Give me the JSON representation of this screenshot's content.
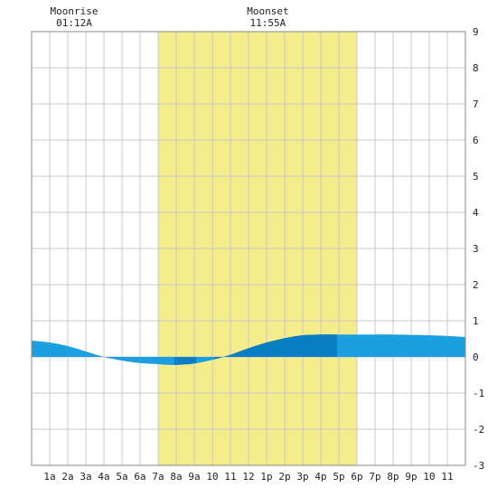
{
  "chart_data": {
    "type": "area",
    "annotations": [
      {
        "label": "Moonrise",
        "time": "01:12A",
        "hour": 1.2
      },
      {
        "label": "Moonset",
        "time": "11:55A",
        "hour": 11.92
      }
    ],
    "x_tick_labels": [
      "1a",
      "2a",
      "3a",
      "4a",
      "5a",
      "6a",
      "7a",
      "8a",
      "9a",
      "10",
      "11",
      "12",
      "1p",
      "2p",
      "3p",
      "4p",
      "5p",
      "6p",
      "7p",
      "8p",
      "9p",
      "10",
      "11"
    ],
    "y_tick_labels": [
      "9",
      "8",
      "7",
      "6",
      "5",
      "4",
      "3",
      "2",
      "1",
      "0",
      "-1",
      "-2",
      "-3"
    ],
    "xlim": [
      0,
      24
    ],
    "ylim": [
      -3,
      9
    ],
    "grid": true,
    "daylight": {
      "start_hour": 7,
      "end_hour": 18
    },
    "series": [
      {
        "x": [
          0,
          1,
          2,
          3,
          4,
          5,
          6,
          7,
          7.5,
          8,
          9,
          10,
          11,
          12,
          13,
          14,
          15,
          16,
          17,
          18,
          19,
          20,
          21,
          22,
          23,
          24
        ],
        "values": [
          0.45,
          0.4,
          0.3,
          0.15,
          0.0,
          -0.1,
          -0.17,
          -0.2,
          -0.22,
          -0.22,
          -0.18,
          -0.08,
          0.06,
          0.24,
          0.4,
          0.52,
          0.6,
          0.62,
          0.62,
          0.62,
          0.62,
          0.62,
          0.61,
          0.6,
          0.58,
          0.55
        ]
      }
    ],
    "colors": {
      "daylight": "#f5ed8c",
      "area_light": "#1a9fe0",
      "area_dark": "#0a7ec2",
      "grid": "#c8c8c8",
      "frame": "#888888"
    }
  }
}
